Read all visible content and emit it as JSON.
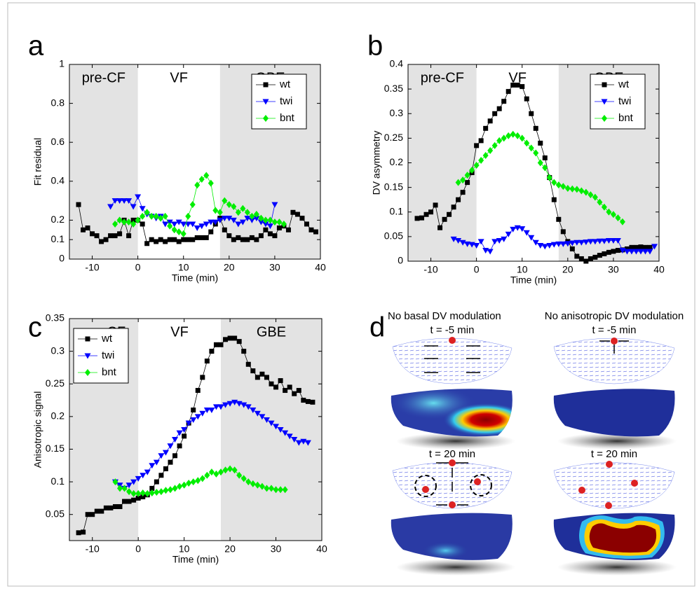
{
  "chart_data": [
    {
      "type": "line",
      "panel_label": "a",
      "ylabel": "Fit residual",
      "xlabel": "Time (min)",
      "xlim": [
        -15,
        40
      ],
      "xticks": [
        -10,
        0,
        10,
        20,
        30,
        40
      ],
      "ylim": [
        0,
        1
      ],
      "yticks": [
        0,
        0.1,
        0.2,
        0.4,
        0.6,
        0.8,
        1
      ],
      "legend": "upper right",
      "phases": [
        {
          "label": "pre-CF",
          "start": -15,
          "end": 0,
          "shaded": true
        },
        {
          "label": "VF",
          "start": 0,
          "end": 18,
          "shaded": false
        },
        {
          "label": "GBE",
          "start": 18,
          "end": 40,
          "shaded": true
        }
      ],
      "series": [
        {
          "name": "wt",
          "color": "#000000",
          "marker": "square",
          "x": [
            -13,
            -12,
            -11,
            -10,
            -9,
            -8,
            -7,
            -6,
            -5,
            -4,
            -3,
            -2,
            -1,
            0,
            1,
            2,
            3,
            4,
            5,
            6,
            7,
            8,
            9,
            10,
            11,
            12,
            13,
            14,
            15,
            16,
            17,
            18,
            19,
            20,
            21,
            22,
            23,
            24,
            25,
            26,
            27,
            28,
            29,
            30,
            31,
            32,
            33,
            34,
            35,
            36,
            37,
            38,
            39
          ],
          "values": [
            0.28,
            0.15,
            0.16,
            0.13,
            0.12,
            0.09,
            0.1,
            0.12,
            0.12,
            0.13,
            0.2,
            0.12,
            0.2,
            0.2,
            0.18,
            0.08,
            0.1,
            0.09,
            0.1,
            0.09,
            0.1,
            0.1,
            0.09,
            0.1,
            0.1,
            0.1,
            0.11,
            0.11,
            0.11,
            0.14,
            0.18,
            0.21,
            0.15,
            0.12,
            0.1,
            0.11,
            0.1,
            0.1,
            0.11,
            0.1,
            0.12,
            0.15,
            0.13,
            0.12,
            0.16,
            0.17,
            0.15,
            0.24,
            0.23,
            0.21,
            0.18,
            0.15,
            0.14
          ]
        },
        {
          "name": "twi",
          "color": "#0000ff",
          "marker": "triangle-down",
          "x": [
            -6,
            -5,
            -4,
            -3,
            -2,
            -1,
            0,
            1,
            2,
            3,
            4,
            5,
            6,
            7,
            8,
            9,
            10,
            11,
            12,
            13,
            14,
            15,
            16,
            17,
            18,
            19,
            20,
            21,
            22,
            23,
            24,
            25,
            26,
            27,
            28,
            29,
            30
          ],
          "values": [
            0.27,
            0.3,
            0.3,
            0.3,
            0.3,
            0.27,
            0.32,
            0.26,
            0.23,
            0.22,
            0.21,
            0.22,
            0.18,
            0.19,
            0.18,
            0.19,
            0.18,
            0.18,
            0.18,
            0.16,
            0.17,
            0.18,
            0.19,
            0.19,
            0.2,
            0.21,
            0.21,
            0.2,
            0.18,
            0.19,
            0.21,
            0.2,
            0.21,
            0.19,
            0.18,
            0.17,
            0.28
          ]
        },
        {
          "name": "bnt",
          "color": "#00ee00",
          "marker": "diamond",
          "x": [
            -5,
            -4,
            -3,
            -2,
            -1,
            0,
            1,
            2,
            3,
            4,
            5,
            6,
            7,
            8,
            9,
            10,
            11,
            12,
            13,
            14,
            15,
            16,
            17,
            18,
            19,
            20,
            21,
            22,
            23,
            24,
            25,
            26,
            27,
            28,
            29,
            30,
            31,
            32
          ],
          "values": [
            0.18,
            0.2,
            0.19,
            0.19,
            0.18,
            0.2,
            0.22,
            0.24,
            0.22,
            0.22,
            0.21,
            0.22,
            0.17,
            0.15,
            0.14,
            0.13,
            0.22,
            0.28,
            0.38,
            0.41,
            0.43,
            0.39,
            0.25,
            0.24,
            0.3,
            0.28,
            0.27,
            0.24,
            0.26,
            0.24,
            0.22,
            0.23,
            0.21,
            0.2,
            0.2,
            0.19,
            0.19,
            0.18
          ]
        }
      ]
    },
    {
      "type": "line",
      "panel_label": "b",
      "ylabel": "DV asymmetry",
      "xlabel": "Time (min)",
      "xlim": [
        -15,
        40
      ],
      "xticks": [
        -10,
        0,
        10,
        20,
        30,
        40
      ],
      "ylim": [
        0,
        0.4
      ],
      "yticks": [
        0,
        0.05,
        0.1,
        0.15,
        0.2,
        0.25,
        0.3,
        0.35,
        0.4
      ],
      "legend": "upper right",
      "phases": [
        {
          "label": "pre-CF",
          "start": -15,
          "end": 0,
          "shaded": true
        },
        {
          "label": "VF",
          "start": 0,
          "end": 18,
          "shaded": false
        },
        {
          "label": "GBE",
          "start": 18,
          "end": 40,
          "shaded": true
        }
      ],
      "series": [
        {
          "name": "wt",
          "color": "#000000",
          "marker": "square",
          "x": [
            -13,
            -12,
            -11,
            -10,
            -9,
            -8,
            -7,
            -6,
            -5,
            -4,
            -3,
            -2,
            -1,
            0,
            1,
            2,
            3,
            4,
            5,
            6,
            7,
            8,
            9,
            10,
            11,
            12,
            13,
            14,
            15,
            16,
            17,
            18,
            19,
            20,
            21,
            22,
            23,
            24,
            25,
            26,
            27,
            28,
            29,
            30,
            31,
            32,
            33,
            34,
            35,
            36,
            37,
            38
          ],
          "values": [
            0.087,
            0.088,
            0.095,
            0.1,
            0.114,
            0.068,
            0.085,
            0.095,
            0.11,
            0.125,
            0.14,
            0.16,
            0.18,
            0.235,
            0.245,
            0.27,
            0.285,
            0.3,
            0.31,
            0.325,
            0.345,
            0.358,
            0.358,
            0.355,
            0.33,
            0.3,
            0.27,
            0.24,
            0.21,
            0.17,
            0.125,
            0.085,
            0.06,
            0.04,
            0.025,
            0.01,
            0.005,
            0,
            0.005,
            0.008,
            0.012,
            0.015,
            0.018,
            0.02,
            0.022,
            0.023,
            0.025,
            0.028,
            0.028,
            0.029,
            0.028,
            0.028
          ]
        },
        {
          "name": "twi",
          "color": "#0000ff",
          "marker": "triangle-down",
          "x": [
            -5,
            -4,
            -3,
            -2,
            -1,
            0,
            1,
            2,
            3,
            4,
            5,
            6,
            7,
            8,
            9,
            10,
            11,
            12,
            13,
            14,
            15,
            16,
            17,
            18,
            19,
            20,
            21,
            22,
            23,
            24,
            25,
            26,
            27,
            28,
            29,
            30,
            31,
            32,
            33,
            34,
            35,
            36,
            37,
            38,
            39
          ],
          "values": [
            0.045,
            0.042,
            0.038,
            0.035,
            0.034,
            0.032,
            0.04,
            0.022,
            0.02,
            0.04,
            0.042,
            0.045,
            0.055,
            0.065,
            0.068,
            0.066,
            0.058,
            0.048,
            0.038,
            0.032,
            0.03,
            0.032,
            0.034,
            0.035,
            0.035,
            0.036,
            0.037,
            0.038,
            0.038,
            0.039,
            0.04,
            0.04,
            0.041,
            0.041,
            0.042,
            0.042,
            0.042,
            0.022,
            0.02,
            0.02,
            0.02,
            0.02,
            0.02,
            0.02,
            0.03
          ]
        },
        {
          "name": "bnt",
          "color": "#00ee00",
          "marker": "diamond",
          "x": [
            -4,
            -3,
            -2,
            -1,
            0,
            1,
            2,
            3,
            4,
            5,
            6,
            7,
            8,
            9,
            10,
            11,
            12,
            13,
            14,
            15,
            16,
            17,
            18,
            19,
            20,
            21,
            22,
            23,
            24,
            25,
            26,
            27,
            28,
            29,
            30,
            31,
            32
          ],
          "values": [
            0.16,
            0.165,
            0.175,
            0.185,
            0.195,
            0.205,
            0.215,
            0.225,
            0.235,
            0.245,
            0.25,
            0.255,
            0.258,
            0.255,
            0.25,
            0.24,
            0.23,
            0.22,
            0.2,
            0.19,
            0.17,
            0.16,
            0.155,
            0.152,
            0.148,
            0.147,
            0.146,
            0.143,
            0.14,
            0.135,
            0.13,
            0.12,
            0.11,
            0.1,
            0.095,
            0.088,
            0.08
          ]
        }
      ]
    },
    {
      "type": "line",
      "panel_label": "c",
      "ylabel": "Anisotropic signal",
      "xlabel": "Time (min)",
      "xlim": [
        -15,
        40
      ],
      "xticks": [
        -10,
        0,
        10,
        20,
        30,
        40
      ],
      "ylim": [
        0.01,
        0.35
      ],
      "yticks": [
        0.05,
        0.1,
        0.15,
        0.2,
        0.25,
        0.3,
        0.35
      ],
      "legend": "upper left",
      "phases": [
        {
          "label": "pre-CF",
          "start": -15,
          "end": 0,
          "shaded": true
        },
        {
          "label": "VF",
          "start": 0,
          "end": 18,
          "shaded": false
        },
        {
          "label": "GBE",
          "start": 18,
          "end": 40,
          "shaded": true
        }
      ],
      "series": [
        {
          "name": "wt",
          "color": "#000000",
          "marker": "square",
          "x": [
            -13,
            -12,
            -11,
            -10,
            -9,
            -8,
            -7,
            -6,
            -5,
            -4,
            -3,
            -2,
            -1,
            0,
            1,
            2,
            3,
            4,
            5,
            6,
            7,
            8,
            9,
            10,
            11,
            12,
            13,
            14,
            15,
            16,
            17,
            18,
            19,
            20,
            21,
            22,
            23,
            24,
            25,
            26,
            27,
            28,
            29,
            30,
            31,
            32,
            33,
            34,
            35,
            36,
            37,
            38
          ],
          "values": [
            0.022,
            0.023,
            0.05,
            0.05,
            0.055,
            0.055,
            0.06,
            0.06,
            0.062,
            0.062,
            0.07,
            0.07,
            0.072,
            0.075,
            0.077,
            0.08,
            0.09,
            0.1,
            0.11,
            0.12,
            0.13,
            0.14,
            0.155,
            0.17,
            0.19,
            0.21,
            0.24,
            0.26,
            0.285,
            0.3,
            0.31,
            0.31,
            0.318,
            0.32,
            0.32,
            0.315,
            0.3,
            0.28,
            0.27,
            0.26,
            0.265,
            0.26,
            0.25,
            0.245,
            0.255,
            0.24,
            0.245,
            0.235,
            0.24,
            0.225,
            0.223,
            0.222
          ]
        },
        {
          "name": "twi",
          "color": "#0000ff",
          "marker": "triangle-down",
          "x": [
            -5,
            -4,
            -3,
            -2,
            -1,
            0,
            1,
            2,
            3,
            4,
            5,
            6,
            7,
            8,
            9,
            10,
            11,
            12,
            13,
            14,
            15,
            16,
            17,
            18,
            19,
            20,
            21,
            22,
            23,
            24,
            25,
            26,
            27,
            28,
            29,
            30,
            31,
            32,
            33,
            34,
            35,
            36,
            37
          ],
          "values": [
            0.1,
            0.095,
            0.09,
            0.095,
            0.1,
            0.105,
            0.11,
            0.115,
            0.125,
            0.13,
            0.14,
            0.145,
            0.155,
            0.165,
            0.175,
            0.18,
            0.19,
            0.195,
            0.2,
            0.205,
            0.21,
            0.21,
            0.215,
            0.215,
            0.218,
            0.22,
            0.222,
            0.22,
            0.218,
            0.215,
            0.21,
            0.205,
            0.2,
            0.195,
            0.19,
            0.185,
            0.18,
            0.175,
            0.17,
            0.165,
            0.16,
            0.162,
            0.16
          ]
        },
        {
          "name": "bnt",
          "color": "#00ee00",
          "marker": "diamond",
          "x": [
            -5,
            -4,
            -3,
            -2,
            -1,
            0,
            1,
            2,
            3,
            4,
            5,
            6,
            7,
            8,
            9,
            10,
            11,
            12,
            13,
            14,
            15,
            16,
            17,
            18,
            19,
            20,
            21,
            22,
            23,
            24,
            25,
            26,
            27,
            28,
            29,
            30,
            31,
            32
          ],
          "values": [
            0.1,
            0.09,
            0.09,
            0.085,
            0.082,
            0.082,
            0.083,
            0.082,
            0.083,
            0.084,
            0.085,
            0.087,
            0.088,
            0.09,
            0.093,
            0.095,
            0.098,
            0.1,
            0.102,
            0.105,
            0.11,
            0.115,
            0.112,
            0.115,
            0.118,
            0.12,
            0.118,
            0.11,
            0.105,
            0.1,
            0.097,
            0.095,
            0.093,
            0.09,
            0.09,
            0.088,
            0.088,
            0.088
          ]
        }
      ]
    }
  ],
  "panel_d": {
    "panel_label": "d",
    "columns": [
      {
        "title": "No basal DV modulation",
        "times": [
          "t = -5 min",
          "t = 20 min"
        ]
      },
      {
        "title": "No anisotropic DV modulation",
        "times": [
          "t = -5 min",
          "t = 20 min"
        ]
      }
    ]
  }
}
